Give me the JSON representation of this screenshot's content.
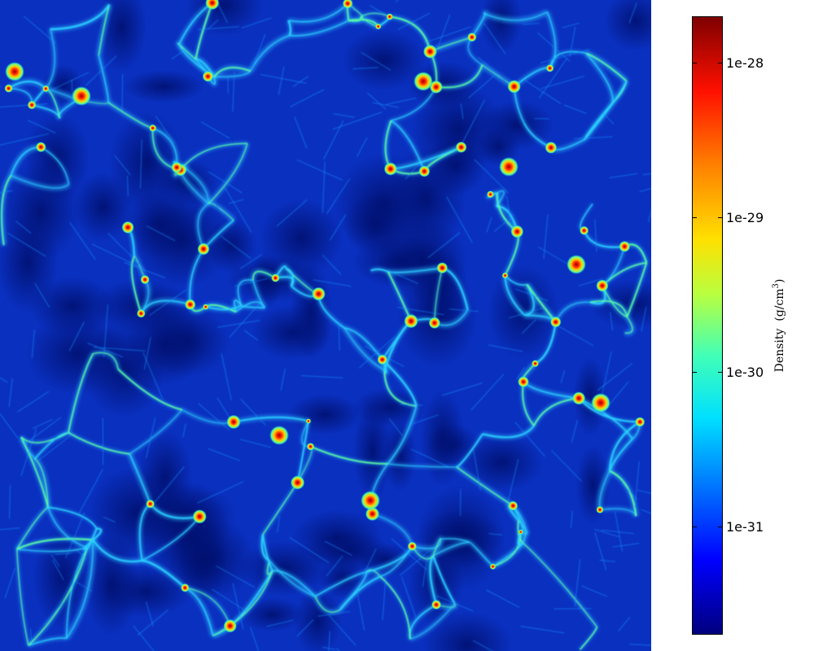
{
  "colorbar": {
    "label_prefix": "Density",
    "label_unit_open": "(g/cm",
    "label_unit_exp": "3",
    "label_unit_close": ")",
    "ticks": [
      "1e-28",
      "1e-29",
      "1e-30",
      "1e-31"
    ],
    "colormap": [
      "#00007f",
      "#0000ff",
      "#0080ff",
      "#00e0ff",
      "#40ffb8",
      "#b8ff40",
      "#ffe000",
      "#ff8000",
      "#ff1000",
      "#7f0000"
    ]
  },
  "image": {
    "description_colors": {
      "background_void": "#0a2a9a",
      "filament": "#25b8ff",
      "filament_bright": "#5cff9c",
      "node": "#ffe03a",
      "core": "#d01010"
    }
  }
}
